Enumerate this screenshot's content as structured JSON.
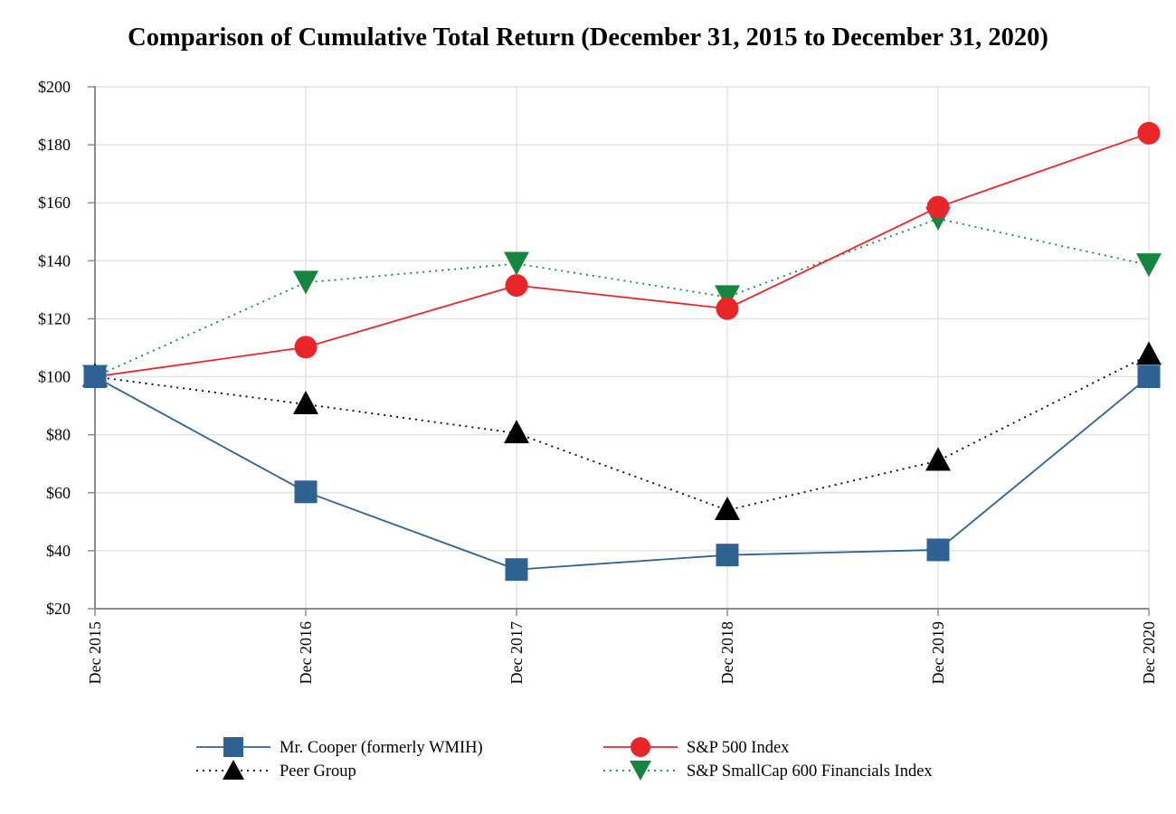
{
  "chart_data": {
    "type": "line",
    "title": "Comparison of Cumulative Total Return (December 31, 2015 to December 31, 2020)",
    "xlabel": "",
    "ylabel": "",
    "categories": [
      "Dec 2015",
      "Dec 2016",
      "Dec 2017",
      "Dec 2018",
      "Dec 2019",
      "Dec 2020"
    ],
    "ylim": [
      20,
      200
    ],
    "yticks": [
      20,
      40,
      60,
      80,
      100,
      120,
      140,
      160,
      180,
      200
    ],
    "ytick_labels": [
      "$20",
      "$40",
      "$60",
      "$80",
      "$100",
      "$120",
      "$140",
      "$160",
      "$180",
      "$200"
    ],
    "grid": true,
    "legend_position": "bottom",
    "series": [
      {
        "name": "Mr. Cooper (formerly WMIH)",
        "values": [
          100,
          60.3,
          33.5,
          38.5,
          40.3,
          100
        ],
        "color": "#2f6193",
        "line_style": "solid",
        "marker": "square"
      },
      {
        "name": "S&P 500 Index",
        "values": [
          100,
          110.2,
          131.5,
          123.5,
          158.5,
          184
        ],
        "color": "#e8262a",
        "line_style": "solid",
        "marker": "circle"
      },
      {
        "name": "Peer Group",
        "values": [
          100,
          90.5,
          80.5,
          54,
          71,
          107.5
        ],
        "color": "#000000",
        "line_style": "dotted",
        "marker": "triangle-up"
      },
      {
        "name": "S&P SmallCap 600 Financials Index",
        "values": [
          100,
          132.5,
          139,
          127.5,
          154.5,
          138.5
        ],
        "color": "#17853f",
        "line_style": "dotted",
        "marker": "triangle-down"
      }
    ]
  }
}
